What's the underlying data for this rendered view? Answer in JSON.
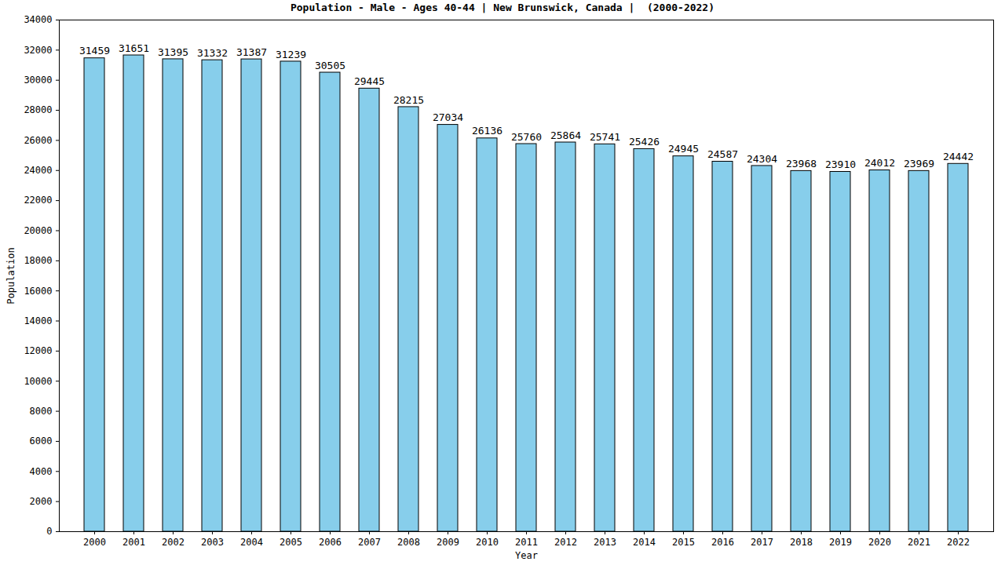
{
  "chart_data": {
    "type": "bar",
    "title": "Population - Male - Ages 40-44 | New Brunswick, Canada |  (2000-2022)",
    "x_label": "Year",
    "y_label": "Population",
    "categories": [
      "2000",
      "2001",
      "2002",
      "2003",
      "2004",
      "2005",
      "2006",
      "2007",
      "2008",
      "2009",
      "2010",
      "2011",
      "2012",
      "2013",
      "2014",
      "2015",
      "2016",
      "2017",
      "2018",
      "2019",
      "2020",
      "2021",
      "2022"
    ],
    "values": [
      31459,
      31651,
      31395,
      31332,
      31387,
      31239,
      30505,
      29445,
      28215,
      27034,
      26136,
      25760,
      25864,
      25741,
      25426,
      24945,
      24587,
      24304,
      23968,
      23910,
      24012,
      23969,
      24442
    ],
    "color": "#87ceeb",
    "ylim": [
      0,
      34000
    ],
    "yticks": [
      0,
      2000,
      4000,
      6000,
      8000,
      10000,
      12000,
      14000,
      16000,
      18000,
      20000,
      22000,
      24000,
      26000,
      28000,
      30000,
      32000,
      34000
    ],
    "data_labels": true
  }
}
